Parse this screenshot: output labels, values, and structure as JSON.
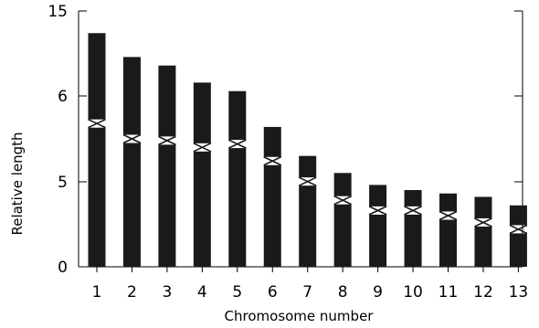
{
  "chart_data": {
    "type": "bar",
    "xlabel": "Chromosome number",
    "ylabel": "Relative length",
    "categories": [
      "1",
      "2",
      "3",
      "4",
      "5",
      "6",
      "7",
      "8",
      "9",
      "10",
      "11",
      "12",
      "13"
    ],
    "y_ticks": [
      "0",
      "5",
      "6",
      "15"
    ],
    "ylim": [
      0,
      15
    ],
    "grid": false,
    "bar_color": "#1a1a1a",
    "series": [
      {
        "values": [
          13.7,
          12.3,
          11.8,
          10.8,
          10.3,
          8.2,
          6.5,
          5.5,
          4.8,
          4.5,
          4.3,
          4.1,
          3.6
        ],
        "centromere": [
          8.4,
          7.5,
          7.4,
          7.0,
          7.2,
          6.2,
          5.0,
          3.9,
          3.3,
          3.3,
          3.0,
          2.6,
          2.2
        ]
      }
    ]
  }
}
